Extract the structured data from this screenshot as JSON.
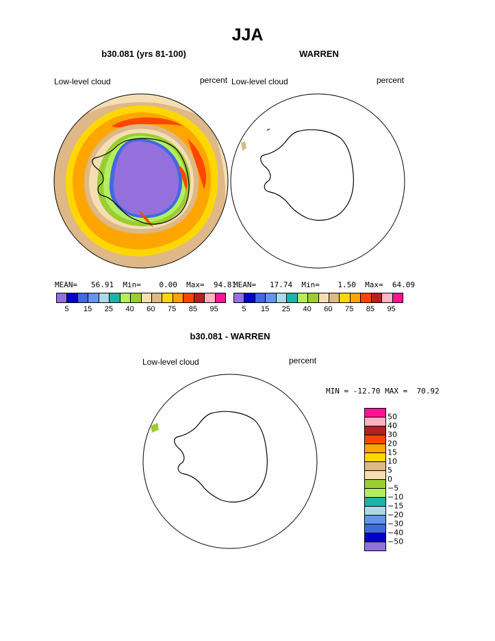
{
  "figure": {
    "title": "JJA"
  },
  "panels": [
    {
      "title": "b30.081 (yrs 81-100)",
      "left_label": "Low-level cloud",
      "right_label": "percent",
      "stats": {
        "mean_label": "MEAN=",
        "mean": "56.91",
        "min_label": "Min=",
        "min": "0.00",
        "max_label": "Max=",
        "max": "94.81"
      }
    },
    {
      "title": "WARREN",
      "left_label": "Low-level cloud",
      "right_label": "percent",
      "stats": {
        "mean_label": "MEAN=",
        "mean": "17.74",
        "min_label": "Min=",
        "min": "1.50",
        "max_label": "Max=",
        "max": "64.09"
      }
    },
    {
      "title": "b30.081 - WARREN",
      "left_label": "Low-level cloud",
      "right_label": "percent",
      "stats_line": "MIN = -12.70 MAX =  70.92"
    }
  ],
  "colorbar_top": {
    "colors": [
      "#9370db",
      "#0000cd",
      "#4169e1",
      "#6495ed",
      "#add8e6",
      "#20b2aa",
      "#b4ee60",
      "#9acd32",
      "#f5deb3",
      "#deb887",
      "#ffd700",
      "#ffa500",
      "#ff4500",
      "#b22222",
      "#ffb6c1",
      "#ff1493"
    ],
    "tick_labels": [
      "5",
      "15",
      "25",
      "40",
      "60",
      "75",
      "85",
      "95"
    ]
  },
  "colorbar_diff": {
    "colors_top_to_bottom": [
      "#ff1493",
      "#ffb6c1",
      "#b22222",
      "#ff4500",
      "#ffa500",
      "#ffd700",
      "#deb887",
      "#f5deb3",
      "#9acd32",
      "#b4ee60",
      "#20b2aa",
      "#add8e6",
      "#6495ed",
      "#4169e1",
      "#0000cd",
      "#9370db"
    ],
    "tick_labels": [
      "50",
      "40",
      "30",
      "20",
      "15",
      "10",
      "5",
      "0",
      "−5",
      "−10",
      "−15",
      "−20",
      "−30",
      "−40",
      "−50"
    ]
  },
  "map_colors": {
    "low": "#9370db",
    "blue": "#4169e1",
    "cyan": "#20b2aa",
    "lightgreen": "#b4ee60",
    "green": "#9acd32",
    "wheat": "#f5deb3",
    "tan": "#deb887",
    "gold": "#ffd700",
    "orange": "#ffa500",
    "red": "#ff4500",
    "darkred": "#b22222"
  }
}
